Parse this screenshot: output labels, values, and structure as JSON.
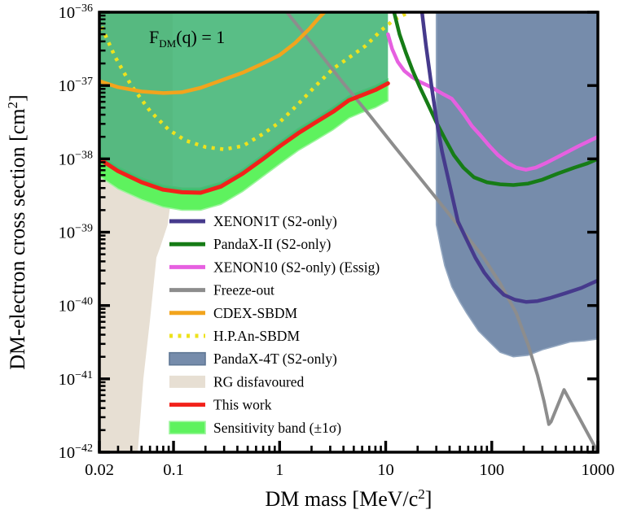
{
  "figure": {
    "annotation": {
      "prefix": "F",
      "sub": "DM",
      "suffix": "(q) = 1"
    },
    "xlabel": {
      "prefix": "DM mass [MeV/c",
      "sup": "2",
      "suffix": "]"
    },
    "ylabel": {
      "prefix": "DM-electron cross section [cm",
      "sup": "2",
      "suffix": "]"
    }
  },
  "chart_data": {
    "type": "line",
    "xscale": "log",
    "yscale": "log",
    "xlim": [
      0.02,
      1000
    ],
    "ylim": [
      1e-42,
      1e-36
    ],
    "grid": false,
    "x_ticks": [
      {
        "v": 0.02,
        "label": "0.02"
      },
      {
        "v": 0.1,
        "label": "0.1"
      },
      {
        "v": 1,
        "label": "1"
      },
      {
        "v": 10,
        "label": "10"
      },
      {
        "v": 100,
        "label": "100"
      },
      {
        "v": 1000,
        "label": "1000"
      }
    ],
    "y_ticks": [
      {
        "v": 1e-36,
        "base": "10",
        "exp": "−36"
      },
      {
        "v": 1e-37,
        "base": "10",
        "exp": "−37"
      },
      {
        "v": 1e-38,
        "base": "10",
        "exp": "−38"
      },
      {
        "v": 1e-39,
        "base": "10",
        "exp": "−39"
      },
      {
        "v": 1e-40,
        "base": "10",
        "exp": "−40"
      },
      {
        "v": 1e-41,
        "base": "10",
        "exp": "−41"
      },
      {
        "v": 1e-42,
        "base": "10",
        "exp": "−42"
      }
    ],
    "regions": [
      {
        "id": "rg-disfavoured",
        "label": "RG disfavoured",
        "type": "polygon",
        "color": "#e7dfd3",
        "opacity": 1,
        "stroke": "none",
        "points": [
          [
            0.02,
            1e-36
          ],
          [
            0.098,
            1e-36
          ],
          [
            0.098,
            4e-39
          ],
          [
            0.088,
            1.26e-39
          ],
          [
            0.075,
            6.3e-40
          ],
          [
            0.069,
            4.5e-40
          ],
          [
            0.06,
            6.3e-41
          ],
          [
            0.052,
            1e-41
          ],
          [
            0.046,
            1e-42
          ],
          [
            0.02,
            1e-42
          ]
        ]
      },
      {
        "id": "sensitivity-band",
        "label": "Sensitivity band (±1σ)",
        "type": "band",
        "color": "#5ef25e",
        "opacity": 1,
        "stroke": "#9cf59c",
        "upper": [
          [
            0.02,
            1.15e-38
          ],
          [
            0.03,
            7.8e-39
          ],
          [
            0.05,
            5.5e-39
          ],
          [
            0.08,
            4.4e-39
          ],
          [
            0.12,
            4e-39
          ],
          [
            0.18,
            4e-39
          ],
          [
            0.28,
            4.8e-39
          ],
          [
            0.45,
            7.2e-39
          ],
          [
            0.7,
            1.15e-38
          ],
          [
            1.0,
            1.7e-38
          ],
          [
            1.5,
            2.6e-38
          ],
          [
            2.2,
            3.6e-38
          ],
          [
            3.2,
            5.1e-38
          ],
          [
            4.5,
            7.2e-38
          ],
          [
            6.0,
            8.5e-38
          ],
          [
            8.0,
            1e-37
          ],
          [
            10.5,
            1.23e-37
          ]
        ],
        "lower": [
          [
            0.02,
            5.8e-39
          ],
          [
            0.03,
            3.9e-39
          ],
          [
            0.05,
            2.8e-39
          ],
          [
            0.08,
            2.2e-39
          ],
          [
            0.12,
            2e-39
          ],
          [
            0.18,
            2e-39
          ],
          [
            0.28,
            2.4e-39
          ],
          [
            0.45,
            3.6e-39
          ],
          [
            0.7,
            5.8e-39
          ],
          [
            1.0,
            8.5e-39
          ],
          [
            1.5,
            1.3e-38
          ],
          [
            2.2,
            1.8e-38
          ],
          [
            3.2,
            2.5e-38
          ],
          [
            4.5,
            3.6e-38
          ],
          [
            6.0,
            4.3e-38
          ],
          [
            8.0,
            5e-38
          ],
          [
            10.5,
            6.2e-38
          ]
        ]
      },
      {
        "id": "this-work-excluded",
        "label": "",
        "type": "above-series",
        "series": "this-work",
        "color": "#3CB371",
        "opacity": 0.85,
        "stroke": "none"
      },
      {
        "id": "pandax-4t",
        "label": "PandaX-4T (S2-only)",
        "type": "polygon",
        "color": "#768cab",
        "opacity": 1,
        "stroke": "#93a7c0",
        "points": [
          [
            30,
            1e-36
          ],
          [
            30,
            1.26e-39
          ],
          [
            33,
            6.3e-40
          ],
          [
            36,
            3.5e-40
          ],
          [
            42,
            1.8e-40
          ],
          [
            50,
            1.12e-40
          ],
          [
            58,
            7.9e-41
          ],
          [
            75,
            4.5e-41
          ],
          [
            95,
            3.2e-41
          ],
          [
            120,
            2.3e-41
          ],
          [
            160,
            2e-41
          ],
          [
            220,
            2.1e-41
          ],
          [
            300,
            2.5e-41
          ],
          [
            400,
            2.8e-41
          ],
          [
            550,
            3.2e-41
          ],
          [
            750,
            3.3e-41
          ],
          [
            1000,
            3.5e-41
          ],
          [
            1000,
            1e-36
          ]
        ]
      }
    ],
    "series": [
      {
        "id": "freeze-out",
        "label": "Freeze-out",
        "color": "#8d8d8d",
        "width": 4,
        "dash": "none",
        "points": [
          [
            1.17,
            1e-36
          ],
          [
            2.2,
            3.2e-37
          ],
          [
            4,
            1.07e-37
          ],
          [
            7,
            4e-38
          ],
          [
            12,
            1.5e-38
          ],
          [
            20,
            6e-39
          ],
          [
            35,
            2.2e-39
          ],
          [
            60,
            8.3e-40
          ],
          [
            83,
            4.6e-40
          ],
          [
            120,
            2e-40
          ],
          [
            170,
            7.9e-41
          ],
          [
            222,
            2.8e-41
          ],
          [
            270,
            1.12e-41
          ],
          [
            310,
            5e-42
          ],
          [
            345,
            2.4e-42
          ],
          [
            362,
            2.6e-42
          ],
          [
            480,
            7.1e-42
          ],
          [
            1000,
            1e-42
          ]
        ]
      },
      {
        "id": "hpan-sbdm",
        "label": "H.P.An-SBDM",
        "color": "#eee21c",
        "width": 4.5,
        "dash": "4 6.5",
        "points": [
          [
            0.021,
            6.3e-37
          ],
          [
            0.028,
            2.5e-37
          ],
          [
            0.04,
            1e-37
          ],
          [
            0.06,
            4.5e-38
          ],
          [
            0.09,
            2.5e-38
          ],
          [
            0.13,
            1.78e-38
          ],
          [
            0.2,
            1.45e-38
          ],
          [
            0.3,
            1.35e-38
          ],
          [
            0.45,
            1.5e-38
          ],
          [
            0.7,
            2.2e-38
          ],
          [
            1.0,
            3.16e-38
          ],
          [
            1.5,
            5.6e-38
          ],
          [
            2.2,
            1e-37
          ],
          [
            3.2,
            1.7e-37
          ],
          [
            4.5,
            2.4e-37
          ],
          [
            6.5,
            3.5e-37
          ],
          [
            9,
            5.6e-37
          ],
          [
            12,
            7.9e-37
          ],
          [
            15,
            9.3e-37
          ],
          [
            17,
            1e-36
          ]
        ]
      },
      {
        "id": "cdex-sbdm",
        "label": "CDEX-SBDM",
        "color": "#f2a41d",
        "width": 4.5,
        "dash": "none",
        "points": [
          [
            0.02,
            1.15e-37
          ],
          [
            0.03,
            9.5e-38
          ],
          [
            0.05,
            8.3e-38
          ],
          [
            0.08,
            7.9e-38
          ],
          [
            0.12,
            8.1e-38
          ],
          [
            0.18,
            9.3e-38
          ],
          [
            0.28,
            1.17e-37
          ],
          [
            0.45,
            1.5e-37
          ],
          [
            0.7,
            2e-37
          ],
          [
            1.0,
            2.6e-37
          ],
          [
            1.4,
            3.8e-37
          ],
          [
            1.9,
            5.9e-37
          ],
          [
            2.4,
            8.7e-37
          ],
          [
            2.65,
            1e-36
          ]
        ]
      },
      {
        "id": "xenon10",
        "label": "XENON10 (S2-only) (Essig)",
        "color": "#e660e0",
        "width": 4.5,
        "dash": "none",
        "points": [
          [
            10.5,
            5e-37
          ],
          [
            11.5,
            3.16e-37
          ],
          [
            13,
            2.1e-37
          ],
          [
            15,
            1.58e-37
          ],
          [
            17.5,
            1.32e-37
          ],
          [
            21,
            1.12e-37
          ],
          [
            25,
            1e-37
          ],
          [
            29,
            8.9e-38
          ],
          [
            35,
            7.6e-38
          ],
          [
            42,
            6.6e-38
          ],
          [
            48,
            5.2e-38
          ],
          [
            55,
            4e-38
          ],
          [
            65,
            2.8e-38
          ],
          [
            78,
            2.1e-38
          ],
          [
            95,
            1.5e-38
          ],
          [
            115,
            1.12e-38
          ],
          [
            140,
            8.9e-39
          ],
          [
            170,
            7.6e-39
          ],
          [
            210,
            7.1e-39
          ],
          [
            260,
            7.6e-39
          ],
          [
            330,
            8.9e-39
          ],
          [
            450,
            1.12e-38
          ],
          [
            650,
            1.48e-38
          ],
          [
            1000,
            2e-38
          ]
        ]
      },
      {
        "id": "pandax-ii",
        "label": "PandaX-II (S2-only)",
        "color": "#167c16",
        "width": 4.5,
        "dash": "none",
        "points": [
          [
            12,
            1e-36
          ],
          [
            13.5,
            5e-37
          ],
          [
            15.5,
            2.8e-37
          ],
          [
            18,
            1.58e-37
          ],
          [
            21,
            9.5e-38
          ],
          [
            25,
            5.6e-38
          ],
          [
            30,
            3.16e-38
          ],
          [
            36,
            1.9e-38
          ],
          [
            44,
            1.12e-38
          ],
          [
            54,
            7.6e-39
          ],
          [
            68,
            5.6e-39
          ],
          [
            90,
            4.8e-39
          ],
          [
            120,
            4.5e-39
          ],
          [
            160,
            4.4e-39
          ],
          [
            220,
            4.6e-39
          ],
          [
            300,
            5.2e-39
          ],
          [
            420,
            6.3e-39
          ],
          [
            600,
            7.6e-39
          ],
          [
            800,
            8.7e-39
          ],
          [
            1000,
            1e-38
          ]
        ]
      },
      {
        "id": "xenon1t",
        "label": "XENON1T (S2-only)",
        "color": "#463a8c",
        "width": 4.5,
        "dash": "none",
        "points": [
          [
            22,
            1e-36
          ],
          [
            24,
            3.5e-37
          ],
          [
            27,
            1e-37
          ],
          [
            30,
            3.5e-38
          ],
          [
            34,
            1.26e-38
          ],
          [
            40,
            4.5e-39
          ],
          [
            48,
            1.4e-39
          ],
          [
            58,
            7.9e-40
          ],
          [
            70,
            4.5e-40
          ],
          [
            85,
            2.8e-40
          ],
          [
            105,
            1.9e-40
          ],
          [
            130,
            1.4e-40
          ],
          [
            165,
            1.2e-40
          ],
          [
            210,
            1.12e-40
          ],
          [
            270,
            1.15e-40
          ],
          [
            350,
            1.26e-40
          ],
          [
            500,
            1.48e-40
          ],
          [
            700,
            1.74e-40
          ],
          [
            1000,
            2.2e-40
          ]
        ]
      },
      {
        "id": "this-work",
        "label": "This work",
        "color": "#f2211a",
        "width": 5,
        "dash": "none",
        "points": [
          [
            0.02,
            1e-38
          ],
          [
            0.03,
            6.8e-39
          ],
          [
            0.05,
            4.8e-39
          ],
          [
            0.08,
            3.8e-39
          ],
          [
            0.12,
            3.5e-39
          ],
          [
            0.18,
            3.45e-39
          ],
          [
            0.28,
            4.2e-39
          ],
          [
            0.45,
            6.3e-39
          ],
          [
            0.7,
            1e-38
          ],
          [
            1.0,
            1.48e-38
          ],
          [
            1.5,
            2.24e-38
          ],
          [
            2.2,
            3.16e-38
          ],
          [
            3.2,
            4.4e-38
          ],
          [
            4.5,
            6.3e-38
          ],
          [
            6.0,
            7.4e-38
          ],
          [
            8.0,
            8.7e-38
          ],
          [
            10.5,
            1.07e-37
          ]
        ]
      }
    ],
    "legend": {
      "position": "lower-center-left",
      "entries": [
        {
          "label": "XENON1T (S2-only)",
          "swatch": "line",
          "color": "#463a8c"
        },
        {
          "label": "PandaX-II (S2-only)",
          "swatch": "line",
          "color": "#167c16"
        },
        {
          "label": "XENON10 (S2-only) (Essig)",
          "swatch": "line",
          "color": "#e660e0"
        },
        {
          "label": "Freeze-out",
          "swatch": "line",
          "color": "#8d8d8d"
        },
        {
          "label": "CDEX-SBDM",
          "swatch": "line",
          "color": "#f2a41d"
        },
        {
          "label": "H.P.An-SBDM",
          "swatch": "dotted",
          "color": "#eee21c"
        },
        {
          "label": "PandaX-4T (S2-only)",
          "swatch": "patch",
          "color": "#768cab",
          "border": "#5f7795"
        },
        {
          "label": "RG disfavoured",
          "swatch": "patch",
          "color": "#e7dfd3",
          "border": "none"
        },
        {
          "label": "This work",
          "swatch": "line",
          "color": "#f2211a"
        },
        {
          "label": "Sensitivity band (±1σ)",
          "swatch": "patch",
          "color": "#5ef25e",
          "border": "#9cf59c"
        }
      ]
    }
  }
}
